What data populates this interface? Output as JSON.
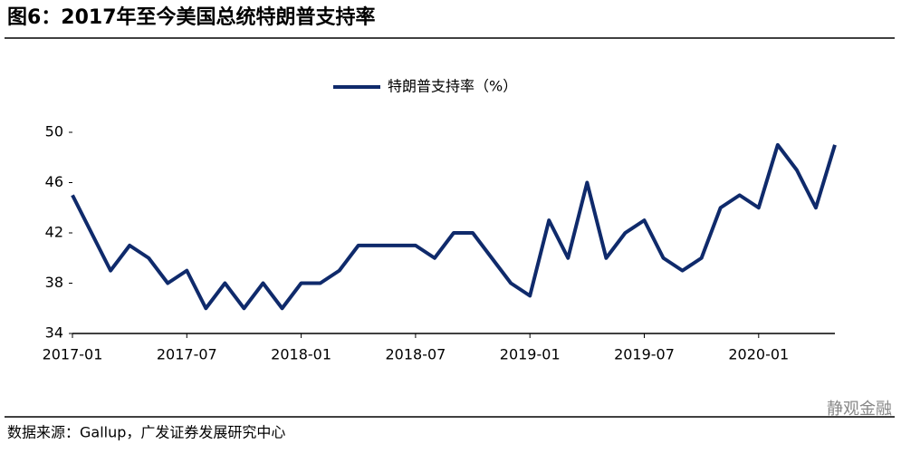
{
  "chart_data": {
    "type": "line",
    "title": "图6：2017年至今美国总统特朗普支持率",
    "source": "数据来源：Gallup，广发证券发展研究中心",
    "watermark": "静观金融",
    "x": [
      "2017-01",
      "2017-02",
      "2017-03",
      "2017-04",
      "2017-05",
      "2017-06",
      "2017-07",
      "2017-08",
      "2017-09",
      "2017-10",
      "2017-11",
      "2017-12",
      "2018-01",
      "2018-02",
      "2018-03",
      "2018-04",
      "2018-05",
      "2018-06",
      "2018-07",
      "2018-08",
      "2018-09",
      "2018-10",
      "2018-11",
      "2018-12",
      "2019-01",
      "2019-02",
      "2019-03",
      "2019-04",
      "2019-05",
      "2019-06",
      "2019-07",
      "2019-08",
      "2019-09",
      "2019-10",
      "2019-11",
      "2019-12",
      "2020-01",
      "2020-02",
      "2020-03",
      "2020-04",
      "2020-05"
    ],
    "series": [
      {
        "name": "特朗普支持率（%）",
        "color": "#0f2a6b",
        "values": [
          45,
          42,
          39,
          41,
          40,
          38,
          39,
          36,
          38,
          36,
          38,
          36,
          38,
          38,
          39,
          41,
          41,
          41,
          41,
          40,
          42,
          42,
          40,
          38,
          37,
          43,
          40,
          46,
          40,
          42,
          43,
          40,
          39,
          40,
          44,
          45,
          44,
          49,
          47,
          44,
          49
        ]
      }
    ],
    "xticks": [
      "2017-01",
      "2017-07",
      "2018-01",
      "2018-07",
      "2019-01",
      "2019-07",
      "2020-01"
    ],
    "ylim": [
      34,
      50
    ],
    "yticks": [
      34,
      38,
      42,
      46,
      50
    ],
    "grid": false,
    "legend": "top"
  }
}
